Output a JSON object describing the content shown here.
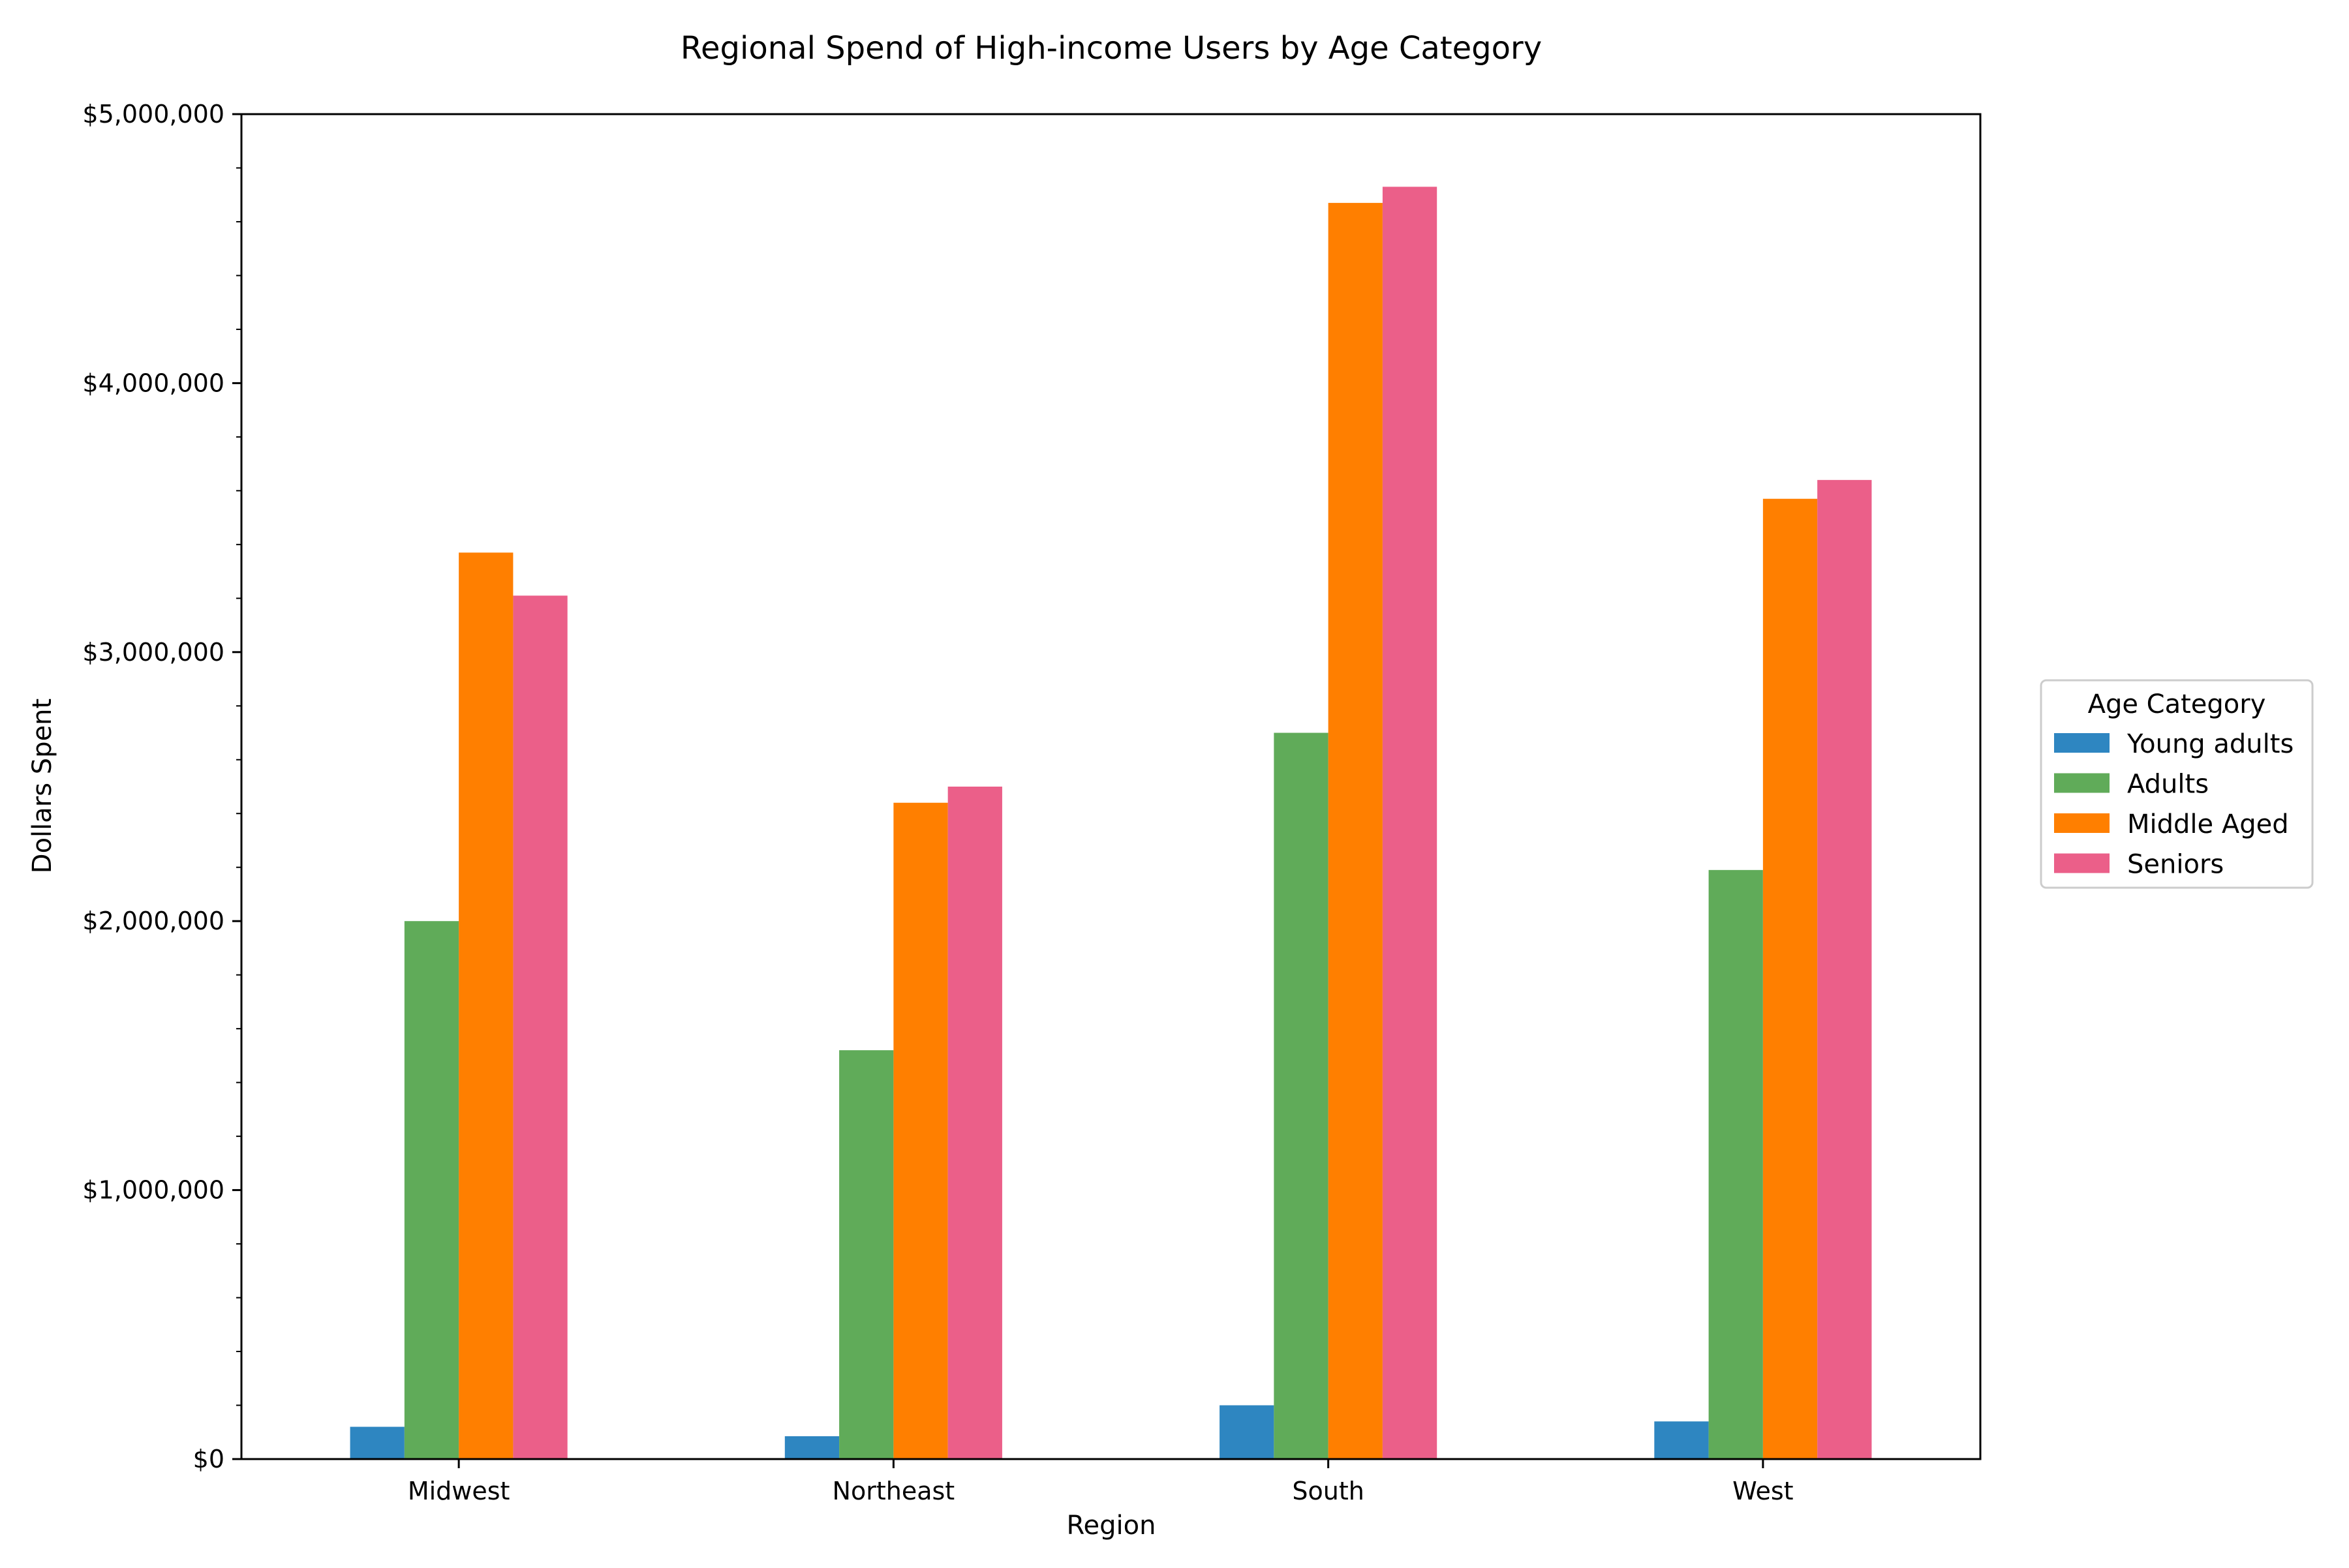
{
  "chart_data": {
    "type": "bar",
    "title": "Regional Spend of High-income Users by Age Category",
    "xlabel": "Region",
    "ylabel": "Dollars Spent",
    "categories": [
      "Midwest",
      "Northeast",
      "South",
      "West"
    ],
    "series": [
      {
        "name": "Young adults",
        "color": "#2e86c1",
        "values": [
          120000,
          85000,
          200000,
          140000
        ]
      },
      {
        "name": "Adults",
        "color": "#60ab59",
        "values": [
          2000000,
          1520000,
          2700000,
          2190000
        ]
      },
      {
        "name": "Middle Aged",
        "color": "#ff7f00",
        "values": [
          3370000,
          2440000,
          4670000,
          3570000
        ]
      },
      {
        "name": "Seniors",
        "color": "#eb5f89",
        "values": [
          3210000,
          2500000,
          4730000,
          3640000
        ]
      }
    ],
    "ylim": [
      0,
      5000000
    ],
    "y_ticks": [
      0,
      1000000,
      2000000,
      3000000,
      4000000,
      5000000
    ],
    "y_tick_labels": [
      "$0",
      "$1,000,000",
      "$2,000,000",
      "$3,000,000",
      "$4,000,000",
      "$5,000,000"
    ],
    "grid": false,
    "legend": {
      "title": "Age Category",
      "placement": "outside-right"
    }
  }
}
